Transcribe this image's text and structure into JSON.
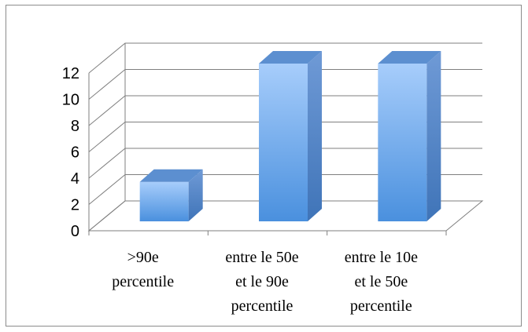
{
  "chart_data": {
    "type": "bar",
    "title": "",
    "xlabel": "",
    "ylabel": "",
    "categories": [
      [
        ">90e",
        "percentile"
      ],
      [
        "entre le 50e",
        "et le 90e",
        "percentile"
      ],
      [
        "entre le 10e",
        "et le 50e",
        "percentile"
      ]
    ],
    "values": [
      3,
      12,
      12
    ],
    "ylim": [
      0,
      12
    ],
    "yticks": [
      0,
      2,
      4,
      6,
      8,
      10,
      12
    ],
    "grid": true,
    "legend": "none",
    "style": "3d-column",
    "colors": {
      "bar_top": "#a7cdfb",
      "bar_bottom": "#4a90de",
      "bar_side": "#3f74b8",
      "bar_cap": "#5c8fd0",
      "grid": "#7f7f7f"
    }
  }
}
